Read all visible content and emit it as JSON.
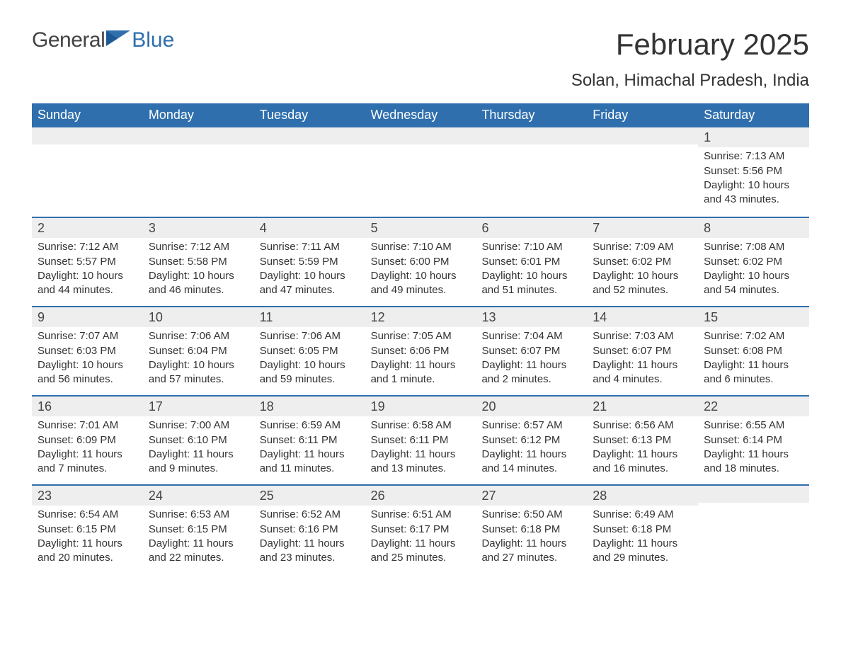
{
  "brand": {
    "part1": "General",
    "part2": "Blue"
  },
  "title": "February 2025",
  "subtitle": "Solan, Himachal Pradesh, India",
  "colors": {
    "header_bg": "#2f6fad",
    "header_text": "#ffffff",
    "daynum_bg": "#eeeeee",
    "week_divider": "#2f6fad",
    "body_text": "#333333",
    "background": "#ffffff"
  },
  "daysOfWeek": [
    "Sunday",
    "Monday",
    "Tuesday",
    "Wednesday",
    "Thursday",
    "Friday",
    "Saturday"
  ],
  "weeks": [
    [
      {
        "empty": true
      },
      {
        "empty": true
      },
      {
        "empty": true
      },
      {
        "empty": true
      },
      {
        "empty": true
      },
      {
        "empty": true
      },
      {
        "n": "1",
        "sunrise": "Sunrise: 7:13 AM",
        "sunset": "Sunset: 5:56 PM",
        "dl1": "Daylight: 10 hours",
        "dl2": "and 43 minutes."
      }
    ],
    [
      {
        "n": "2",
        "sunrise": "Sunrise: 7:12 AM",
        "sunset": "Sunset: 5:57 PM",
        "dl1": "Daylight: 10 hours",
        "dl2": "and 44 minutes."
      },
      {
        "n": "3",
        "sunrise": "Sunrise: 7:12 AM",
        "sunset": "Sunset: 5:58 PM",
        "dl1": "Daylight: 10 hours",
        "dl2": "and 46 minutes."
      },
      {
        "n": "4",
        "sunrise": "Sunrise: 7:11 AM",
        "sunset": "Sunset: 5:59 PM",
        "dl1": "Daylight: 10 hours",
        "dl2": "and 47 minutes."
      },
      {
        "n": "5",
        "sunrise": "Sunrise: 7:10 AM",
        "sunset": "Sunset: 6:00 PM",
        "dl1": "Daylight: 10 hours",
        "dl2": "and 49 minutes."
      },
      {
        "n": "6",
        "sunrise": "Sunrise: 7:10 AM",
        "sunset": "Sunset: 6:01 PM",
        "dl1": "Daylight: 10 hours",
        "dl2": "and 51 minutes."
      },
      {
        "n": "7",
        "sunrise": "Sunrise: 7:09 AM",
        "sunset": "Sunset: 6:02 PM",
        "dl1": "Daylight: 10 hours",
        "dl2": "and 52 minutes."
      },
      {
        "n": "8",
        "sunrise": "Sunrise: 7:08 AM",
        "sunset": "Sunset: 6:02 PM",
        "dl1": "Daylight: 10 hours",
        "dl2": "and 54 minutes."
      }
    ],
    [
      {
        "n": "9",
        "sunrise": "Sunrise: 7:07 AM",
        "sunset": "Sunset: 6:03 PM",
        "dl1": "Daylight: 10 hours",
        "dl2": "and 56 minutes."
      },
      {
        "n": "10",
        "sunrise": "Sunrise: 7:06 AM",
        "sunset": "Sunset: 6:04 PM",
        "dl1": "Daylight: 10 hours",
        "dl2": "and 57 minutes."
      },
      {
        "n": "11",
        "sunrise": "Sunrise: 7:06 AM",
        "sunset": "Sunset: 6:05 PM",
        "dl1": "Daylight: 10 hours",
        "dl2": "and 59 minutes."
      },
      {
        "n": "12",
        "sunrise": "Sunrise: 7:05 AM",
        "sunset": "Sunset: 6:06 PM",
        "dl1": "Daylight: 11 hours",
        "dl2": "and 1 minute."
      },
      {
        "n": "13",
        "sunrise": "Sunrise: 7:04 AM",
        "sunset": "Sunset: 6:07 PM",
        "dl1": "Daylight: 11 hours",
        "dl2": "and 2 minutes."
      },
      {
        "n": "14",
        "sunrise": "Sunrise: 7:03 AM",
        "sunset": "Sunset: 6:07 PM",
        "dl1": "Daylight: 11 hours",
        "dl2": "and 4 minutes."
      },
      {
        "n": "15",
        "sunrise": "Sunrise: 7:02 AM",
        "sunset": "Sunset: 6:08 PM",
        "dl1": "Daylight: 11 hours",
        "dl2": "and 6 minutes."
      }
    ],
    [
      {
        "n": "16",
        "sunrise": "Sunrise: 7:01 AM",
        "sunset": "Sunset: 6:09 PM",
        "dl1": "Daylight: 11 hours",
        "dl2": "and 7 minutes."
      },
      {
        "n": "17",
        "sunrise": "Sunrise: 7:00 AM",
        "sunset": "Sunset: 6:10 PM",
        "dl1": "Daylight: 11 hours",
        "dl2": "and 9 minutes."
      },
      {
        "n": "18",
        "sunrise": "Sunrise: 6:59 AM",
        "sunset": "Sunset: 6:11 PM",
        "dl1": "Daylight: 11 hours",
        "dl2": "and 11 minutes."
      },
      {
        "n": "19",
        "sunrise": "Sunrise: 6:58 AM",
        "sunset": "Sunset: 6:11 PM",
        "dl1": "Daylight: 11 hours",
        "dl2": "and 13 minutes."
      },
      {
        "n": "20",
        "sunrise": "Sunrise: 6:57 AM",
        "sunset": "Sunset: 6:12 PM",
        "dl1": "Daylight: 11 hours",
        "dl2": "and 14 minutes."
      },
      {
        "n": "21",
        "sunrise": "Sunrise: 6:56 AM",
        "sunset": "Sunset: 6:13 PM",
        "dl1": "Daylight: 11 hours",
        "dl2": "and 16 minutes."
      },
      {
        "n": "22",
        "sunrise": "Sunrise: 6:55 AM",
        "sunset": "Sunset: 6:14 PM",
        "dl1": "Daylight: 11 hours",
        "dl2": "and 18 minutes."
      }
    ],
    [
      {
        "n": "23",
        "sunrise": "Sunrise: 6:54 AM",
        "sunset": "Sunset: 6:15 PM",
        "dl1": "Daylight: 11 hours",
        "dl2": "and 20 minutes."
      },
      {
        "n": "24",
        "sunrise": "Sunrise: 6:53 AM",
        "sunset": "Sunset: 6:15 PM",
        "dl1": "Daylight: 11 hours",
        "dl2": "and 22 minutes."
      },
      {
        "n": "25",
        "sunrise": "Sunrise: 6:52 AM",
        "sunset": "Sunset: 6:16 PM",
        "dl1": "Daylight: 11 hours",
        "dl2": "and 23 minutes."
      },
      {
        "n": "26",
        "sunrise": "Sunrise: 6:51 AM",
        "sunset": "Sunset: 6:17 PM",
        "dl1": "Daylight: 11 hours",
        "dl2": "and 25 minutes."
      },
      {
        "n": "27",
        "sunrise": "Sunrise: 6:50 AM",
        "sunset": "Sunset: 6:18 PM",
        "dl1": "Daylight: 11 hours",
        "dl2": "and 27 minutes."
      },
      {
        "n": "28",
        "sunrise": "Sunrise: 6:49 AM",
        "sunset": "Sunset: 6:18 PM",
        "dl1": "Daylight: 11 hours",
        "dl2": "and 29 minutes."
      },
      {
        "empty": true
      }
    ]
  ]
}
